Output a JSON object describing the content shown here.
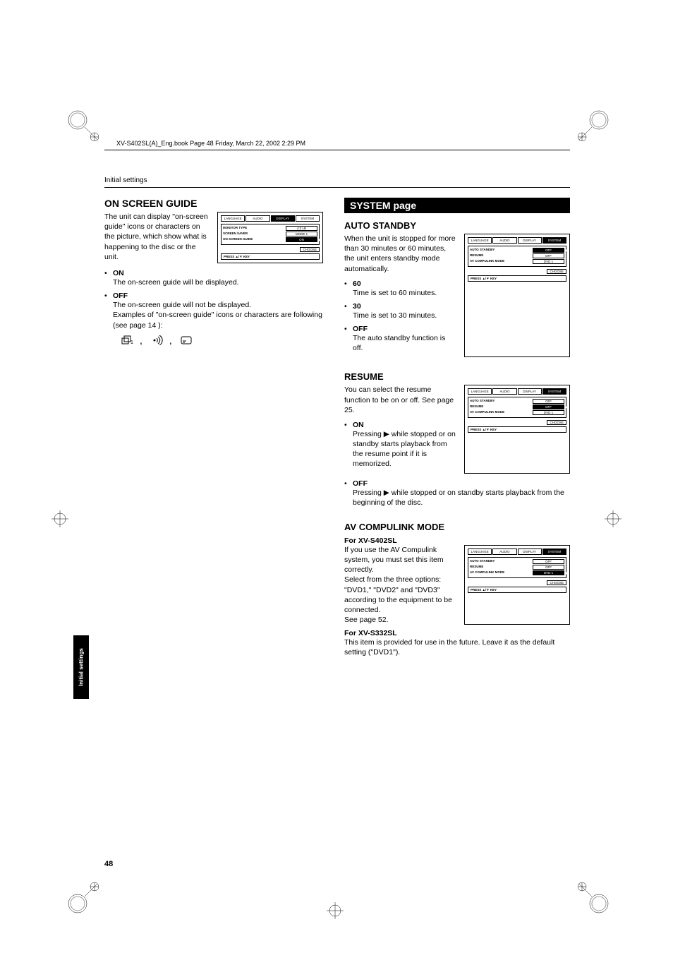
{
  "header": "XV-S402SL(A)_Eng.book  Page 48  Friday, March 22, 2002  2:29 PM",
  "section_header": "Initial settings",
  "sidebar_tab": "Initial settings",
  "page_number": "48",
  "left": {
    "title": "ON SCREEN GUIDE",
    "intro": "The unit can display \"on-screen guide\" icons or characters on the picture, which show what is happening to the disc or the unit.",
    "menu": {
      "tabs": [
        "LANGUAGE",
        "AUDIO",
        "DISPLAY",
        "SYSTEM"
      ],
      "active_tab": 2,
      "rows": [
        {
          "label": "MONITOR TYPE",
          "value": "4:3 LB",
          "highlight": false
        },
        {
          "label": "SCREEN SAVER",
          "value": "MODE 1",
          "highlight": false
        },
        {
          "label": "ON SCREEN GUIDE",
          "value": "ON",
          "highlight": true
        }
      ],
      "choose": "CHOOSE",
      "press": "PRESS ▲/▼ KEY"
    },
    "options": [
      {
        "name": "ON",
        "desc": "The on-screen guide will be displayed."
      },
      {
        "name": "OFF",
        "desc": "The on-screen guide will not be displayed.\nExamples of \"on-screen guide\" icons or characters are following (see page 14 ):"
      }
    ]
  },
  "right": {
    "system_title": "SYSTEM page",
    "auto_standby": {
      "title": "AUTO STANDBY",
      "intro": "When the unit is stopped for more than 30 minutes or 60 minutes, the unit enters standby mode automatically.",
      "menu": {
        "tabs": [
          "LANGUAGE",
          "AUDIO",
          "DISPLAY",
          "SYSTEM"
        ],
        "active_tab": 3,
        "rows": [
          {
            "label": "AUTO STANDBY",
            "value": "OFF",
            "highlight": true
          },
          {
            "label": "RESUME",
            "value": "OFF",
            "highlight": false
          },
          {
            "label": "AV COMPULINK MODE",
            "value": "DVD 1",
            "highlight": false
          }
        ],
        "choose": "CHOOSE",
        "press": "PRESS ▲/▼ KEY"
      },
      "options": [
        {
          "name": "60",
          "desc": "Time is set to 60 minutes."
        },
        {
          "name": "30",
          "desc": "Time is set to 30 minutes."
        },
        {
          "name": "OFF",
          "desc": "The auto standby function is off."
        }
      ]
    },
    "resume": {
      "title": "RESUME",
      "intro": "You can select the resume function to be on or off. See page 25.",
      "menu": {
        "tabs": [
          "LANGUAGE",
          "AUDIO",
          "DISPLAY",
          "SYSTEM"
        ],
        "active_tab": 3,
        "rows": [
          {
            "label": "AUTO STANDBY",
            "value": "OFF",
            "highlight": false
          },
          {
            "label": "RESUME",
            "value": "OFF",
            "highlight": true
          },
          {
            "label": "AV COMPULINK MODE",
            "value": "DVD 1",
            "highlight": false
          }
        ],
        "choose": "CHOOSE",
        "press": "PRESS ▲/▼ KEY"
      },
      "options": [
        {
          "name": "ON",
          "desc": "Pressing ▶ while stopped or on standby starts playback from the resume point if it is memorized."
        },
        {
          "name": "OFF",
          "desc": "Pressing ▶ while stopped or on standby starts playback from the beginning of the disc."
        }
      ]
    },
    "av_compulink": {
      "title": "AV COMPULINK MODE",
      "sub1": "For XV-S402SL",
      "body1": "If you use the AV Compulink system, you must set this item correctly.\nSelect from the three options: \"DVD1,\" \"DVD2\" and \"DVD3\" according to the equipment to be connected.\nSee page 52.",
      "menu": {
        "tabs": [
          "LANGUAGE",
          "AUDIO",
          "DISPLAY",
          "SYSTEM"
        ],
        "active_tab": 3,
        "rows": [
          {
            "label": "AUTO STANDBY",
            "value": "OFF",
            "highlight": false
          },
          {
            "label": "RESUME",
            "value": "OFF",
            "highlight": false
          },
          {
            "label": "AV COMPULINK MODE",
            "value": "DVD 1",
            "highlight": true
          }
        ],
        "choose": "CHOOSE",
        "press": "PRESS ▲/▼ KEY"
      },
      "sub2": "For XV-S332SL",
      "body2": "This item is provided for use in the future. Leave it as the default setting (\"DVD1\")."
    }
  }
}
